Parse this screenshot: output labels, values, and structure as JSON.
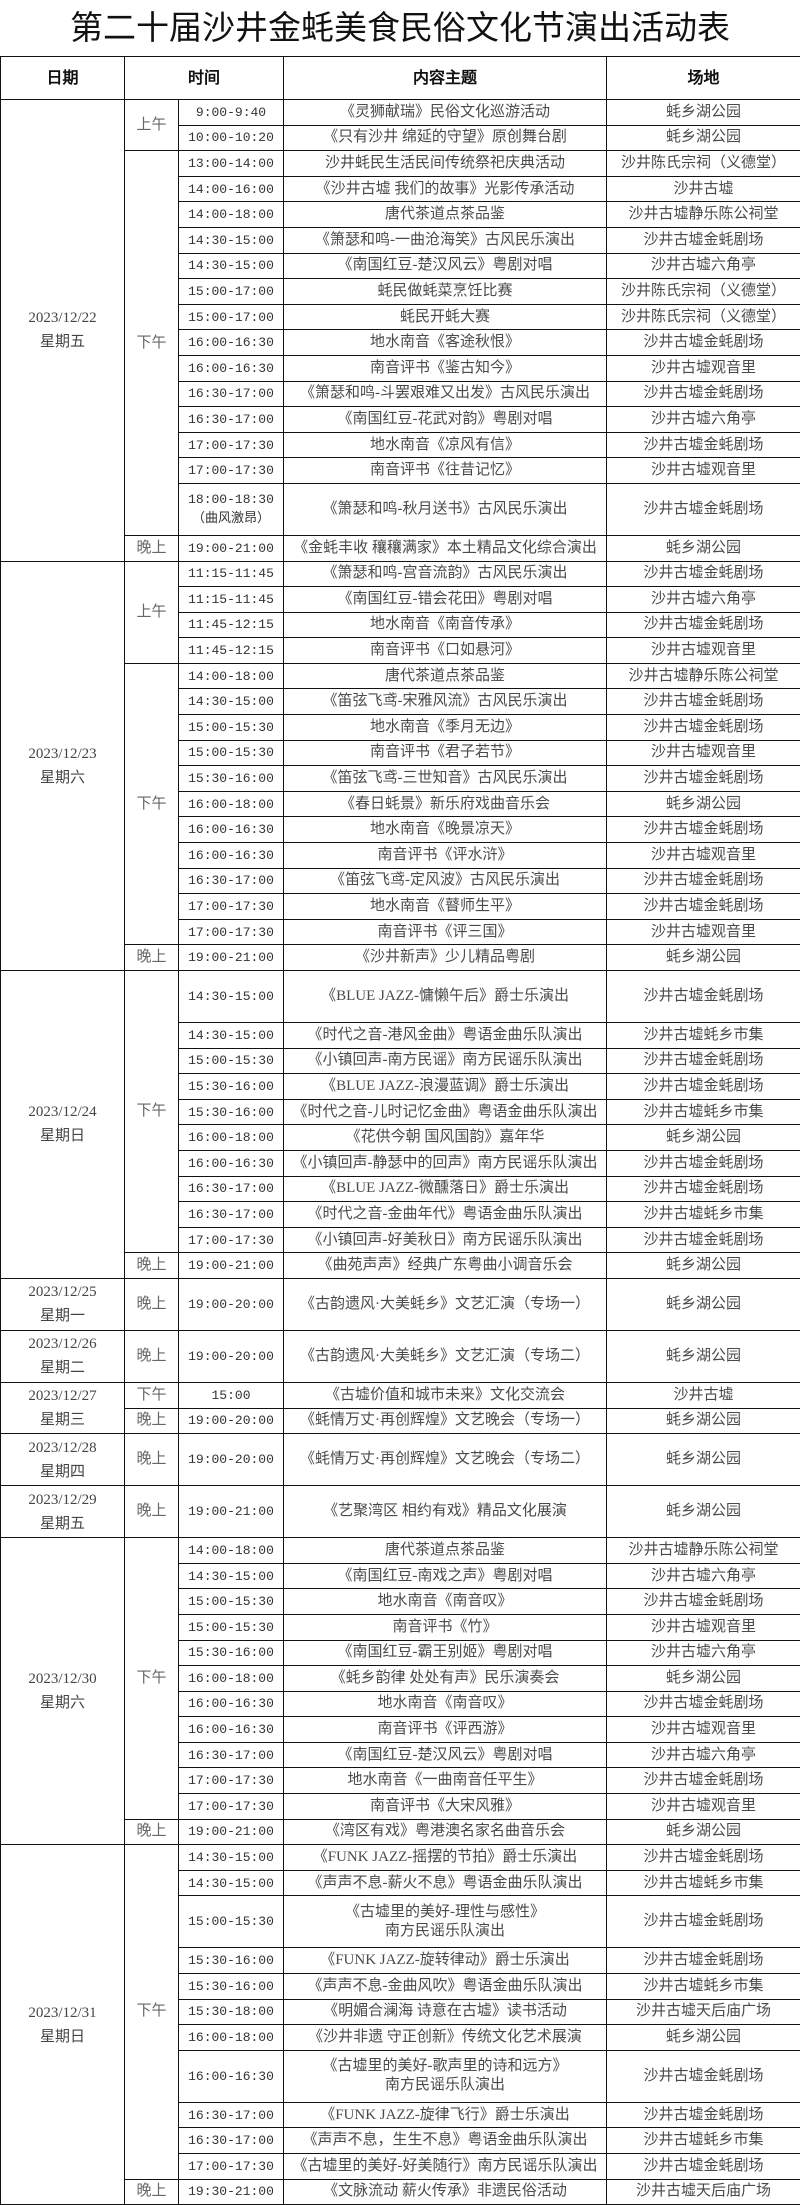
{
  "title": "第二十届沙井金蚝美食民俗文化节演出活动表",
  "headers": {
    "date": "日期",
    "time": "时间",
    "content": "内容主题",
    "venue": "场地"
  },
  "days": [
    {
      "date": "2023/12/22",
      "weekday": "星期五",
      "periods": [
        {
          "label": "上午",
          "rows": [
            {
              "time": "9:00-9:40",
              "content": "《灵狮献瑞》民俗文化巡游活动",
              "venue": "蚝乡湖公园"
            },
            {
              "time": "10:00-10:20",
              "content": "《只有沙井 绵延的守望》原创舞台剧",
              "venue": "蚝乡湖公园"
            }
          ]
        },
        {
          "label": "下午",
          "rows": [
            {
              "time": "13:00-14:00",
              "content": "沙井蚝民生活民间传统祭祀庆典活动",
              "venue": "沙井陈氏宗祠（义德堂）"
            },
            {
              "time": "14:00-16:00",
              "content": "《沙井古墟 我们的故事》光影传承活动",
              "venue": "沙井古墟"
            },
            {
              "time": "14:00-18:00",
              "content": "唐代茶道点茶品鉴",
              "venue": "沙井古墟静乐陈公祠堂"
            },
            {
              "time": "14:30-15:00",
              "content": "《箫瑟和鸣-一曲沧海笑》古风民乐演出",
              "venue": "沙井古墟金蚝剧场"
            },
            {
              "time": "14:30-15:00",
              "content": "《南国红豆-楚汉风云》粤剧对唱",
              "venue": "沙井古墟六角亭"
            },
            {
              "time": "15:00-17:00",
              "content": "蚝民做蚝菜烹饪比赛",
              "venue": "沙井陈氏宗祠（义德堂）"
            },
            {
              "time": "15:00-17:00",
              "content": "蚝民开蚝大赛",
              "venue": "沙井陈氏宗祠（义德堂）"
            },
            {
              "time": "16:00-16:30",
              "content": "地水南音《客途秋恨》",
              "venue": "沙井古墟金蚝剧场"
            },
            {
              "time": "16:00-16:30",
              "content": "南音评书《鉴古知今》",
              "venue": "沙井古墟观音里"
            },
            {
              "time": "16:30-17:00",
              "content": "《箫瑟和鸣-斗罢艰难又出发》古风民乐演出",
              "venue": "沙井古墟金蚝剧场"
            },
            {
              "time": "16:30-17:00",
              "content": "《南国红豆-花武对韵》粤剧对唱",
              "venue": "沙井古墟六角亭"
            },
            {
              "time": "17:00-17:30",
              "content": "地水南音《凉风有信》",
              "venue": "沙井古墟金蚝剧场"
            },
            {
              "time": "17:00-17:30",
              "content": "南音评书《往昔记忆》",
              "venue": "沙井古墟观音里"
            },
            {
              "time": "18:00-18:30\n（曲风激昂）",
              "content": "《箫瑟和鸣-秋月送书》古风民乐演出",
              "venue": "沙井古墟金蚝剧场"
            }
          ]
        },
        {
          "label": "晚上",
          "rows": [
            {
              "time": "19:00-21:00",
              "content": "《金蚝丰收 穰穰满家》本土精品文化综合演出",
              "venue": "蚝乡湖公园"
            }
          ]
        }
      ]
    },
    {
      "date": "2023/12/23",
      "weekday": "星期六",
      "periods": [
        {
          "label": "上午",
          "rows": [
            {
              "time": "11:15-11:45",
              "content": "《箫瑟和鸣-宫音流韵》古风民乐演出",
              "venue": "沙井古墟金蚝剧场"
            },
            {
              "time": "11:15-11:45",
              "content": "《南国红豆-错会花田》粤剧对唱",
              "venue": "沙井古墟六角亭"
            },
            {
              "time": "11:45-12:15",
              "content": "地水南音《南音传承》",
              "venue": "沙井古墟金蚝剧场"
            },
            {
              "time": "11:45-12:15",
              "content": "南音评书《口如悬河》",
              "venue": "沙井古墟观音里"
            }
          ]
        },
        {
          "label": "下午",
          "rows": [
            {
              "time": "14:00-18:00",
              "content": "唐代茶道点茶品鉴",
              "venue": "沙井古墟静乐陈公祠堂"
            },
            {
              "time": "14:30-15:00",
              "content": "《笛弦飞鸢-宋雅风流》古风民乐演出",
              "venue": "沙井古墟金蚝剧场"
            },
            {
              "time": "15:00-15:30",
              "content": "地水南音《季月无边》",
              "venue": "沙井古墟金蚝剧场"
            },
            {
              "time": "15:00-15:30",
              "content": "南音评书《君子若节》",
              "venue": "沙井古墟观音里"
            },
            {
              "time": "15:30-16:00",
              "content": "《笛弦飞鸢-三世知音》古风民乐演出",
              "venue": "沙井古墟金蚝剧场"
            },
            {
              "time": "16:00-18:00",
              "content": "《春日蚝景》新乐府戏曲音乐会",
              "venue": "蚝乡湖公园"
            },
            {
              "time": "16:00-16:30",
              "content": "地水南音《晚景凉天》",
              "venue": "沙井古墟金蚝剧场"
            },
            {
              "time": "16:00-16:30",
              "content": "南音评书《评水浒》",
              "venue": "沙井古墟观音里"
            },
            {
              "time": "16:30-17:00",
              "content": "《笛弦飞鸢-定风波》古风民乐演出",
              "venue": "沙井古墟金蚝剧场"
            },
            {
              "time": "17:00-17:30",
              "content": "地水南音《瞽师生平》",
              "venue": "沙井古墟金蚝剧场"
            },
            {
              "time": "17:00-17:30",
              "content": "南音评书《评三国》",
              "venue": "沙井古墟观音里"
            }
          ]
        },
        {
          "label": "晚上",
          "rows": [
            {
              "time": "19:00-21:00",
              "content": "《沙井新声》少儿精品粤剧",
              "venue": "蚝乡湖公园"
            }
          ]
        }
      ]
    },
    {
      "date": "2023/12/24",
      "weekday": "星期日",
      "periods": [
        {
          "label": "下午",
          "rows": [
            {
              "time": "14:30-15:00",
              "content": "《BLUE JAZZ-慵懒午后》爵士乐演出",
              "venue": "沙井古墟金蚝剧场"
            },
            {
              "time": "14:30-15:00",
              "content": "《时代之音-港风金曲》粤语金曲乐队演出",
              "venue": "沙井古墟蚝乡市集"
            },
            {
              "time": "15:00-15:30",
              "content": "《小镇回声-南方民谣》南方民谣乐队演出",
              "venue": "沙井古墟金蚝剧场"
            },
            {
              "time": "15:30-16:00",
              "content": "《BLUE JAZZ-浪漫蓝调》爵士乐演出",
              "venue": "沙井古墟金蚝剧场"
            },
            {
              "time": "15:30-16:00",
              "content": "《时代之音-儿时记忆金曲》粤语金曲乐队演出",
              "venue": "沙井古墟蚝乡市集"
            },
            {
              "time": "16:00-18:00",
              "content": "《花供今朝 国风国韵》嘉年华",
              "venue": "蚝乡湖公园"
            },
            {
              "time": "16:00-16:30",
              "content": "《小镇回声-静瑟中的回声》南方民谣乐队演出",
              "venue": "沙井古墟金蚝剧场"
            },
            {
              "time": "16:30-17:00",
              "content": "《BLUE JAZZ-微醺落日》爵士乐演出",
              "venue": "沙井古墟金蚝剧场"
            },
            {
              "time": "16:30-17:00",
              "content": "《时代之音-金曲年代》粤语金曲乐队演出",
              "venue": "沙井古墟蚝乡市集"
            },
            {
              "time": "17:00-17:30",
              "content": "《小镇回声-好美秋日》南方民谣乐队演出",
              "venue": "沙井古墟金蚝剧场"
            }
          ]
        },
        {
          "label": "晚上",
          "rows": [
            {
              "time": "19:00-21:00",
              "content": "《曲苑声声》经典广东粤曲小调音乐会",
              "venue": "蚝乡湖公园"
            }
          ]
        }
      ]
    },
    {
      "date": "2023/12/25",
      "weekday": "星期一",
      "periods": [
        {
          "label": "晚上",
          "rows": [
            {
              "time": "19:00-20:00",
              "content": "《古韵遗风·大美蚝乡》文艺汇演（专场一）",
              "venue": "蚝乡湖公园"
            }
          ]
        }
      ]
    },
    {
      "date": "2023/12/26",
      "weekday": "星期二",
      "periods": [
        {
          "label": "晚上",
          "rows": [
            {
              "time": "19:00-20:00",
              "content": "《古韵遗风·大美蚝乡》文艺汇演（专场二）",
              "venue": "蚝乡湖公园"
            }
          ]
        }
      ]
    },
    {
      "date": "2023/12/27",
      "weekday": "星期三",
      "periods": [
        {
          "label": "下午",
          "rows": [
            {
              "time": "15:00",
              "content": "《古墟价值和城市未来》文化交流会",
              "venue": "沙井古墟"
            }
          ]
        },
        {
          "label": "晚上",
          "rows": [
            {
              "time": "19:00-20:00",
              "content": "《蚝情万丈·再创辉煌》文艺晚会（专场一）",
              "venue": "蚝乡湖公园"
            }
          ]
        }
      ]
    },
    {
      "date": "2023/12/28",
      "weekday": "星期四",
      "periods": [
        {
          "label": "晚上",
          "rows": [
            {
              "time": "19:00-20:00",
              "content": "《蚝情万丈·再创辉煌》文艺晚会（专场二）",
              "venue": "蚝乡湖公园"
            }
          ]
        }
      ]
    },
    {
      "date": "2023/12/29",
      "weekday": "星期五",
      "periods": [
        {
          "label": "晚上",
          "rows": [
            {
              "time": "19:00-21:00",
              "content": "《艺聚湾区 相约有戏》精品文化展演",
              "venue": "蚝乡湖公园"
            }
          ]
        }
      ]
    },
    {
      "date": "2023/12/30",
      "weekday": "星期六",
      "periods": [
        {
          "label": "下午",
          "rows": [
            {
              "time": "14:00-18:00",
              "content": "唐代茶道点茶品鉴",
              "venue": "沙井古墟静乐陈公祠堂"
            },
            {
              "time": "14:30-15:00",
              "content": "《南国红豆-南戏之声》粤剧对唱",
              "venue": "沙井古墟六角亭"
            },
            {
              "time": "15:00-15:30",
              "content": "地水南音《南音叹》",
              "venue": "沙井古墟金蚝剧场"
            },
            {
              "time": "15:00-15:30",
              "content": "南音评书《竹》",
              "venue": "沙井古墟观音里"
            },
            {
              "time": "15:30-16:00",
              "content": "《南国红豆-霸王别姬》粤剧对唱",
              "venue": "沙井古墟六角亭"
            },
            {
              "time": "16:00-18:00",
              "content": "《蚝乡韵律 处处有声》民乐演奏会",
              "venue": "蚝乡湖公园"
            },
            {
              "time": "16:00-16:30",
              "content": "地水南音《南音叹》",
              "venue": "沙井古墟金蚝剧场"
            },
            {
              "time": "16:00-16:30",
              "content": "南音评书《评西游》",
              "venue": "沙井古墟观音里"
            },
            {
              "time": "16:30-17:00",
              "content": "《南国红豆-楚汉风云》粤剧对唱",
              "venue": "沙井古墟六角亭"
            },
            {
              "time": "17:00-17:30",
              "content": "地水南音《一曲南音任平生》",
              "venue": "沙井古墟金蚝剧场"
            },
            {
              "time": "17:00-17:30",
              "content": "南音评书《大宋风雅》",
              "venue": "沙井古墟观音里"
            }
          ]
        },
        {
          "label": "晚上",
          "rows": [
            {
              "time": "19:00-21:00",
              "content": "《湾区有戏》粤港澳名家名曲音乐会",
              "venue": "蚝乡湖公园"
            }
          ]
        }
      ]
    },
    {
      "date": "2023/12/31",
      "weekday": "星期日",
      "periods": [
        {
          "label": "下午",
          "rows": [
            {
              "time": "14:30-15:00",
              "content": "《FUNK JAZZ-摇摆的节拍》爵士乐演出",
              "venue": "沙井古墟金蚝剧场"
            },
            {
              "time": "14:30-15:00",
              "content": "《声声不息-薪火不息》粤语金曲乐队演出",
              "venue": "沙井古墟蚝乡市集"
            },
            {
              "time": "15:00-15:30",
              "content": "《古墟里的美好-理性与感性》\n南方民谣乐队演出",
              "venue": "沙井古墟金蚝剧场"
            },
            {
              "time": "15:30-16:00",
              "content": "《FUNK JAZZ-旋转律动》爵士乐演出",
              "venue": "沙井古墟金蚝剧场"
            },
            {
              "time": "15:30-16:00",
              "content": "《声声不息-金曲风吹》粤语金曲乐队演出",
              "venue": "沙井古墟蚝乡市集"
            },
            {
              "time": "15:30-18:00",
              "content": "《明媚合澜海 诗意在古墟》读书活动",
              "venue": "沙井古墟天后庙广场"
            },
            {
              "time": "16:00-18:00",
              "content": "《沙井非遗 守正创新》传统文化艺术展演",
              "venue": "蚝乡湖公园"
            },
            {
              "time": "16:00-16:30",
              "content": "《古墟里的美好-歌声里的诗和远方》\n南方民谣乐队演出",
              "venue": "沙井古墟金蚝剧场"
            },
            {
              "time": "16:30-17:00",
              "content": "《FUNK JAZZ-旋律飞行》爵士乐演出",
              "venue": "沙井古墟金蚝剧场"
            },
            {
              "time": "16:30-17:00",
              "content": "《声声不息，生生不息》粤语金曲乐队演出",
              "venue": "沙井古墟蚝乡市集"
            },
            {
              "time": "17:00-17:30",
              "content": "《古墟里的美好-好美随行》南方民谣乐队演出",
              "venue": "沙井古墟金蚝剧场"
            }
          ]
        },
        {
          "label": "晚上",
          "rows": [
            {
              "time": "19:30-21:00",
              "content": "《文脉流动 薪火传承》非遗民俗活动",
              "venue": "沙井古墟天后庙广场"
            }
          ]
        }
      ]
    }
  ]
}
